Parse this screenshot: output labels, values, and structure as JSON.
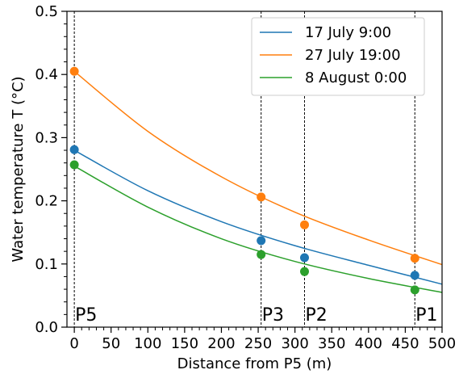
{
  "chart_data": {
    "type": "line",
    "xlabel": "Distance from P5 (m)",
    "ylabel": "Water temperature  T (°C)",
    "xlim": [
      -10,
      500
    ],
    "ylim": [
      0.0,
      0.5
    ],
    "xticks": [
      0,
      50,
      100,
      150,
      200,
      250,
      300,
      350,
      400,
      450,
      500
    ],
    "yticks": [
      0.0,
      0.1,
      0.2,
      0.3,
      0.4,
      0.5
    ],
    "xtick_labels": [
      "0",
      "50",
      "100",
      "150",
      "200",
      "250",
      "300",
      "350",
      "400",
      "450",
      "500"
    ],
    "ytick_labels": [
      "0.0",
      "0.1",
      "0.2",
      "0.3",
      "0.4",
      "0.5"
    ],
    "legend_position": "top-right",
    "positions": [
      {
        "label": "P5",
        "x": 0
      },
      {
        "label": "P3",
        "x": 254
      },
      {
        "label": "P2",
        "x": 313
      },
      {
        "label": "P1",
        "x": 463
      }
    ],
    "series": [
      {
        "name": "17 July 9:00",
        "color": "#1f77b4",
        "fit_curve": {
          "x": [
            0,
            100,
            200,
            300,
            400,
            500
          ],
          "y": [
            0.28,
            0.216,
            0.167,
            0.129,
            0.098,
            0.068
          ]
        },
        "points": [
          {
            "x": 0,
            "y": 0.281
          },
          {
            "x": 254,
            "y": 0.137
          },
          {
            "x": 313,
            "y": 0.11
          },
          {
            "x": 463,
            "y": 0.082
          }
        ]
      },
      {
        "name": "27 July 19:00",
        "color": "#ff7f0e",
        "fit_curve": {
          "x": [
            0,
            100,
            200,
            300,
            400,
            500
          ],
          "y": [
            0.405,
            0.31,
            0.238,
            0.182,
            0.138,
            0.099
          ]
        },
        "points": [
          {
            "x": 0,
            "y": 0.405
          },
          {
            "x": 254,
            "y": 0.206
          },
          {
            "x": 313,
            "y": 0.162
          },
          {
            "x": 463,
            "y": 0.109
          }
        ]
      },
      {
        "name": "8 August 0:00",
        "color": "#2ca02c",
        "fit_curve": {
          "x": [
            0,
            100,
            200,
            300,
            400,
            500
          ],
          "y": [
            0.255,
            0.19,
            0.14,
            0.104,
            0.077,
            0.055
          ]
        },
        "points": [
          {
            "x": 0,
            "y": 0.257
          },
          {
            "x": 254,
            "y": 0.115
          },
          {
            "x": 313,
            "y": 0.088
          },
          {
            "x": 463,
            "y": 0.059
          }
        ]
      }
    ]
  }
}
